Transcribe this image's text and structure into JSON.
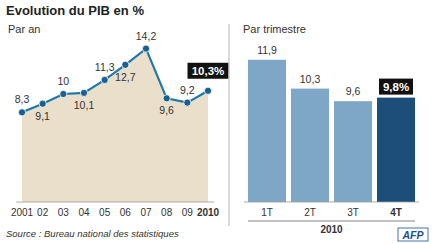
{
  "chart_data": [
    {
      "type": "area",
      "title": "Evolution du PIB en %",
      "subtitle": "Par an",
      "categories": [
        "2001",
        "02",
        "03",
        "04",
        "05",
        "06",
        "07",
        "08",
        "09",
        "2010"
      ],
      "values": [
        8.3,
        9.1,
        10,
        10.1,
        11.3,
        12.7,
        14.2,
        9.6,
        9.2,
        10.3
      ],
      "value_labels": [
        "8,3",
        "9,1",
        "10",
        "10,1",
        "11,3",
        "12,7",
        "14,2",
        "9,6",
        "9,2",
        "10,3%"
      ],
      "color": "#1f77aa",
      "marker": "circle",
      "data_labels": true,
      "tick_labels": "x",
      "ylim": [
        0,
        15
      ],
      "grid": false,
      "annotations": [
        "Source : Bureau national des statistiques",
        "AFP"
      ]
    },
    {
      "type": "bar",
      "title": "Par trimestre",
      "xlabel": "2010",
      "categories": [
        "1T",
        "2T",
        "3T",
        "4T"
      ],
      "values": [
        11.9,
        10.3,
        9.6,
        9.8
      ],
      "value_labels": [
        "11,9",
        "10,3",
        "9,6",
        "9,8%"
      ],
      "colors": [
        "#7ea6c6",
        "#7ea6c6",
        "#7ea6c6",
        "#1d4e7a"
      ],
      "data_labels": true,
      "tick_labels": "x",
      "ylim": [
        4,
        13
      ],
      "grid": false
    }
  ]
}
